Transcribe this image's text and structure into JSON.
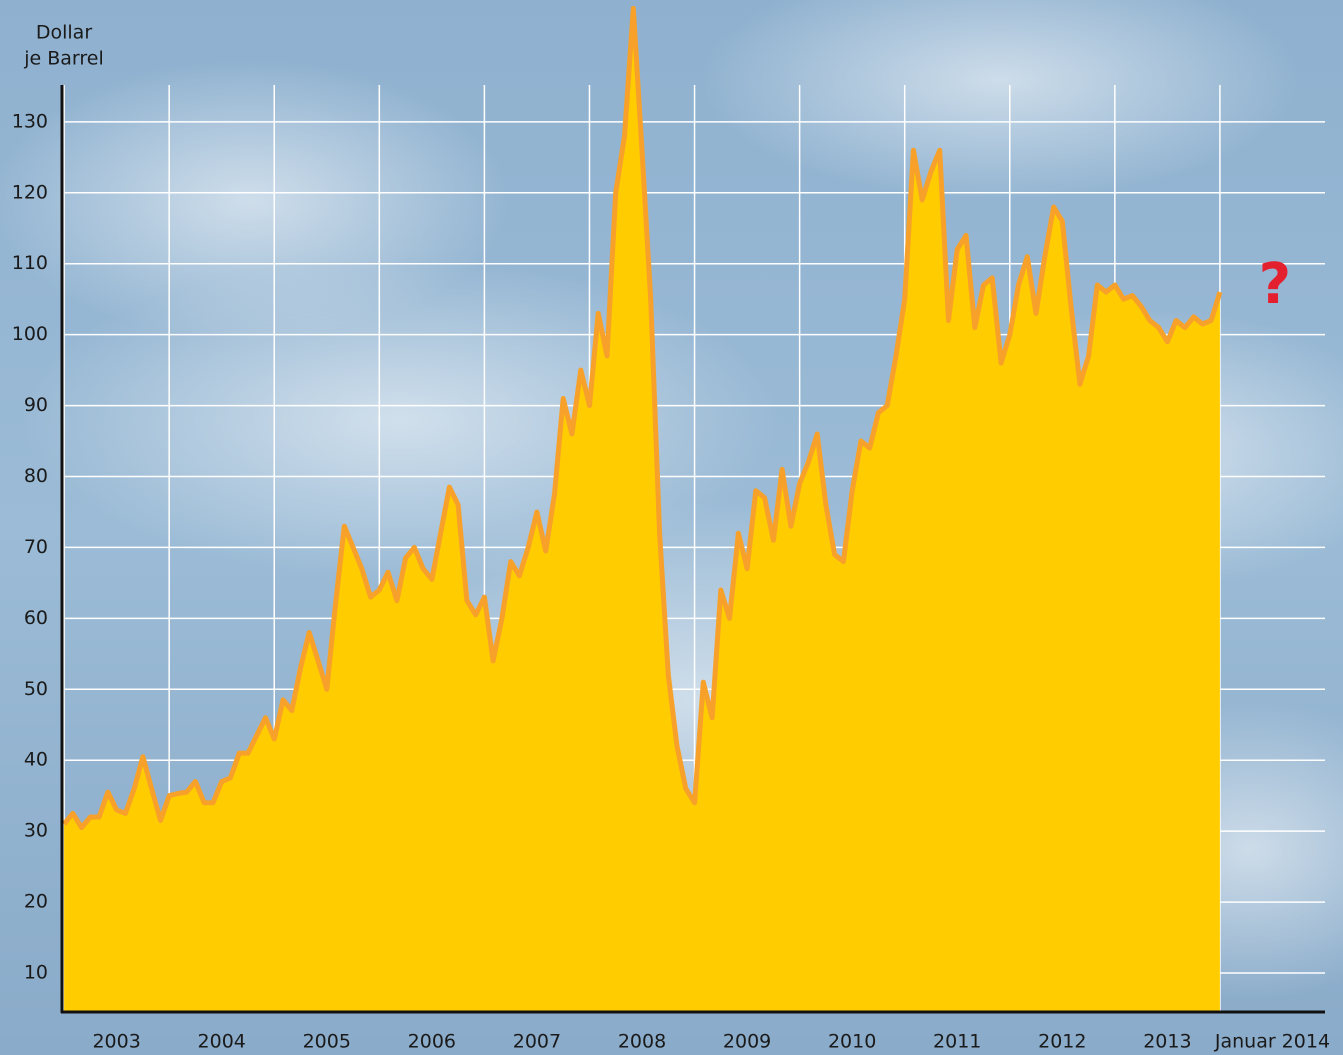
{
  "chart_data": {
    "type": "area",
    "ylabel": [
      "Dollar",
      "je Barrel"
    ],
    "annotation": "?",
    "x": [
      2003,
      2003.083,
      2003.167,
      2003.25,
      2003.333,
      2003.417,
      2003.5,
      2003.583,
      2003.667,
      2003.75,
      2003.833,
      2003.917,
      2004,
      2004.083,
      2004.167,
      2004.25,
      2004.333,
      2004.417,
      2004.5,
      2004.583,
      2004.667,
      2004.75,
      2004.833,
      2004.917,
      2005,
      2005.083,
      2005.167,
      2005.25,
      2005.333,
      2005.417,
      2005.5,
      2005.583,
      2005.667,
      2005.75,
      2005.833,
      2005.917,
      2006,
      2006.083,
      2006.167,
      2006.25,
      2006.333,
      2006.417,
      2006.5,
      2006.583,
      2006.667,
      2006.75,
      2006.833,
      2006.917,
      2007,
      2007.083,
      2007.167,
      2007.25,
      2007.333,
      2007.417,
      2007.5,
      2007.583,
      2007.667,
      2007.75,
      2007.833,
      2007.917,
      2008,
      2008.083,
      2008.167,
      2008.25,
      2008.333,
      2008.417,
      2008.5,
      2008.583,
      2008.667,
      2008.75,
      2008.833,
      2008.917,
      2009,
      2009.083,
      2009.167,
      2009.25,
      2009.333,
      2009.417,
      2009.5,
      2009.583,
      2009.667,
      2009.75,
      2009.833,
      2009.917,
      2010,
      2010.083,
      2010.167,
      2010.25,
      2010.333,
      2010.417,
      2010.5,
      2010.583,
      2010.667,
      2010.75,
      2010.833,
      2010.917,
      2011,
      2011.083,
      2011.167,
      2011.25,
      2011.333,
      2011.417,
      2011.5,
      2011.583,
      2011.667,
      2011.75,
      2011.833,
      2011.917,
      2012,
      2012.083,
      2012.167,
      2012.25,
      2012.333,
      2012.417,
      2012.5,
      2012.583,
      2012.667,
      2012.75,
      2012.833,
      2012.917,
      2013,
      2013.083,
      2013.167,
      2013.25,
      2013.333,
      2013.417,
      2013.5,
      2013.583,
      2013.667,
      2013.75,
      2013.833,
      2013.917,
      2014
    ],
    "values": [
      31,
      32.5,
      30.5,
      32,
      32,
      35.5,
      33,
      32.5,
      36,
      40.5,
      36,
      31.5,
      35,
      35.3,
      35.5,
      37,
      34,
      34,
      37,
      37.5,
      41,
      41,
      43.5,
      46,
      43,
      48.5,
      47,
      53,
      58,
      54,
      50,
      62,
      73,
      70,
      67,
      63,
      64,
      66.5,
      62.5,
      68.5,
      70,
      67,
      65.5,
      72,
      78.5,
      76,
      62.5,
      60.5,
      63,
      54,
      60,
      68,
      66,
      70,
      75,
      69.5,
      77.5,
      91,
      86,
      95,
      90,
      103,
      97,
      120,
      128,
      146,
      126,
      105,
      72,
      52,
      42,
      36,
      34,
      51,
      46,
      64,
      60,
      72,
      67,
      78,
      77,
      71,
      81,
      73,
      79,
      82,
      86,
      76,
      69,
      68,
      78,
      85,
      84,
      89,
      90,
      97,
      105,
      126,
      119,
      123,
      126,
      102,
      112,
      114,
      101,
      107,
      108,
      96,
      100,
      107,
      111,
      103,
      111,
      118,
      116,
      104,
      93,
      97,
      107,
      106,
      107,
      105,
      105.5,
      104,
      102,
      101,
      99,
      102,
      101,
      102.5,
      101.5,
      102,
      106
    ],
    "fill_color": "#ffcc00",
    "line_color": "#f7a12a",
    "annotation_color": "#e5202e",
    "xlim": [
      2002.98,
      2015
    ],
    "xticks": [
      2003,
      2004,
      2005,
      2006,
      2007,
      2008,
      2009,
      2010,
      2011,
      2012,
      2013,
      {
        "value": 2014,
        "label": "Januar 2014"
      }
    ],
    "ylim": [
      4.5,
      135.2
    ],
    "yticks": [
      10,
      20,
      30,
      40,
      50,
      60,
      70,
      80,
      90,
      100,
      110,
      120,
      130
    ],
    "grid": true
  }
}
